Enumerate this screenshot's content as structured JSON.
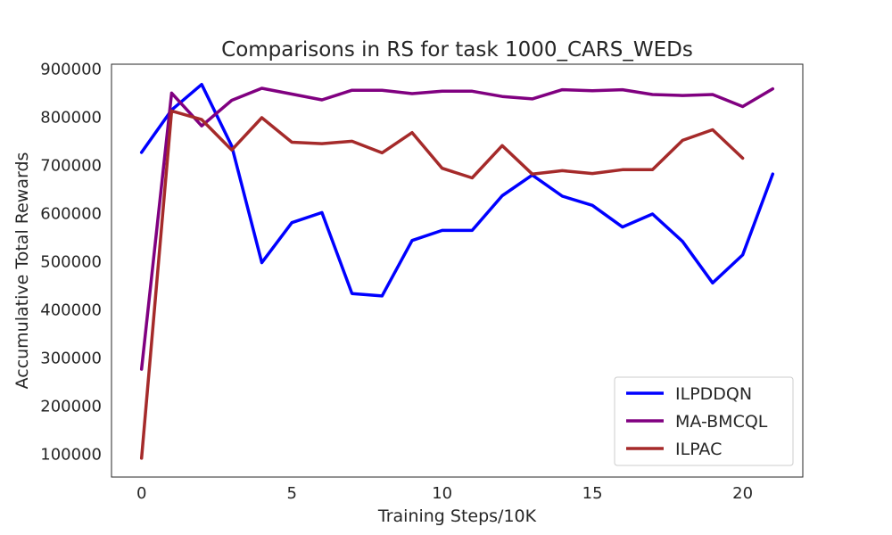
{
  "chart_data": {
    "type": "line",
    "title": "Comparisons in RS for task 1000_CARS_WEDs",
    "xlabel": "Training Steps/10K",
    "ylabel": "Accumulative Total Rewards",
    "xlim": [
      -1,
      22
    ],
    "ylim": [
      53000,
      910000
    ],
    "xticks": [
      0,
      5,
      10,
      15,
      20
    ],
    "yticks": [
      100000,
      200000,
      300000,
      400000,
      500000,
      600000,
      700000,
      800000,
      900000
    ],
    "grid": false,
    "legend_position": "lower-right",
    "series": [
      {
        "name": "ILPDDQN",
        "color": "#0000ff",
        "x": [
          0,
          1,
          2,
          3,
          4,
          5,
          6,
          7,
          8,
          9,
          10,
          11,
          12,
          13,
          14,
          15,
          16,
          17,
          18,
          19,
          20,
          21
        ],
        "y": [
          727000,
          815000,
          868000,
          740000,
          498000,
          581000,
          602000,
          434000,
          429000,
          544000,
          565000,
          565000,
          637000,
          680000,
          636000,
          617000,
          572000,
          599000,
          542000,
          456000,
          514000,
          682000
        ]
      },
      {
        "name": "MA-BMCQL",
        "color": "#800080",
        "x": [
          0,
          1,
          2,
          3,
          4,
          5,
          6,
          7,
          8,
          9,
          10,
          11,
          12,
          13,
          14,
          15,
          16,
          17,
          18,
          19,
          20,
          21
        ],
        "y": [
          277000,
          850000,
          782000,
          835000,
          860000,
          848000,
          836000,
          856000,
          856000,
          849000,
          854000,
          854000,
          843000,
          838000,
          857000,
          855000,
          857000,
          847000,
          845000,
          847000,
          822000,
          859000
        ]
      },
      {
        "name": "ILPAC",
        "color": "#a52a2a",
        "x": [
          0,
          1,
          2,
          3,
          4,
          5,
          6,
          7,
          8,
          9,
          10,
          11,
          12,
          13,
          14,
          15,
          16,
          17,
          18,
          19,
          20
        ],
        "y": [
          92000,
          813000,
          795000,
          732000,
          799000,
          748000,
          745000,
          750000,
          726000,
          768000,
          694000,
          674000,
          741000,
          682000,
          689000,
          683000,
          691000,
          691000,
          752000,
          774000,
          715000
        ]
      }
    ]
  }
}
